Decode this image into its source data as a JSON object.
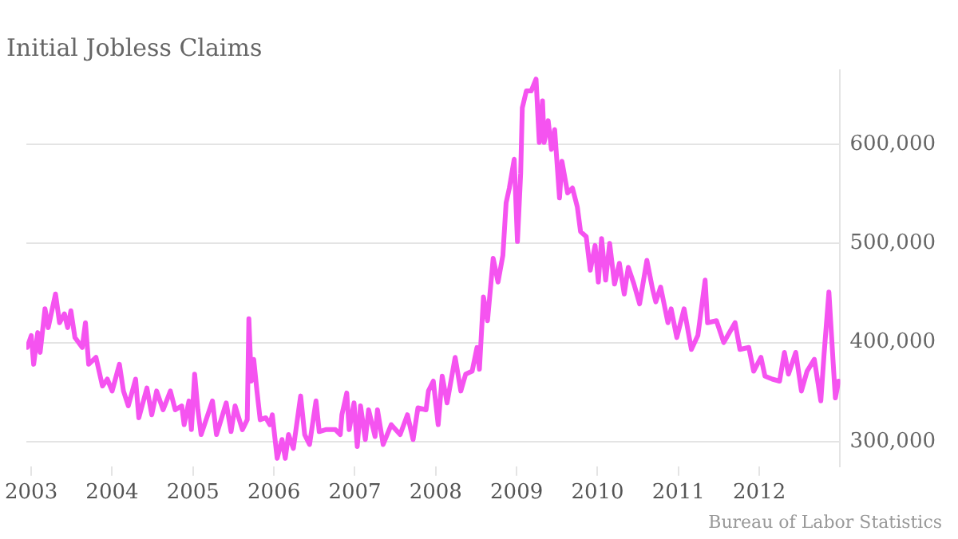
{
  "chart_data": {
    "type": "line",
    "title": "Initial Jobless Claims",
    "annotations": [
      "Bureau of Labor Statistics"
    ],
    "x": [
      2002.95,
      2003.0,
      2003.03,
      2003.08,
      2003.11,
      2003.17,
      2003.21,
      2003.3,
      2003.35,
      2003.41,
      2003.45,
      2003.49,
      2003.54,
      2003.63,
      2003.67,
      2003.71,
      2003.8,
      2003.88,
      2003.94,
      2004.0,
      2004.09,
      2004.14,
      2004.2,
      2004.29,
      2004.33,
      2004.43,
      2004.49,
      2004.55,
      2004.63,
      2004.72,
      2004.78,
      2004.86,
      2004.89,
      2004.95,
      2004.98,
      2005.02,
      2005.06,
      2005.1,
      2005.24,
      2005.29,
      2005.41,
      2005.47,
      2005.52,
      2005.61,
      2005.67,
      2005.69,
      2005.72,
      2005.75,
      2005.79,
      2005.83,
      2005.9,
      2005.95,
      2005.98,
      2006.04,
      2006.1,
      2006.14,
      2006.18,
      2006.24,
      2006.33,
      2006.38,
      2006.44,
      2006.52,
      2006.56,
      2006.64,
      2006.76,
      2006.82,
      2006.84,
      2006.9,
      2006.93,
      2006.99,
      2007.03,
      2007.07,
      2007.13,
      2007.17,
      2007.25,
      2007.28,
      2007.35,
      2007.45,
      2007.56,
      2007.65,
      2007.72,
      2007.78,
      2007.88,
      2007.91,
      2007.97,
      2008.03,
      2008.08,
      2008.14,
      2008.24,
      2008.31,
      2008.37,
      2008.45,
      2008.51,
      2008.54,
      2008.59,
      2008.64,
      2008.71,
      2008.77,
      2008.83,
      2008.87,
      2008.91,
      2008.97,
      2009.01,
      2009.05,
      2009.07,
      2009.12,
      2009.18,
      2009.24,
      2009.28,
      2009.32,
      2009.34,
      2009.39,
      2009.43,
      2009.47,
      2009.53,
      2009.56,
      2009.63,
      2009.69,
      2009.75,
      2009.79,
      2009.86,
      2009.91,
      2009.97,
      2010.01,
      2010.05,
      2010.1,
      2010.15,
      2010.21,
      2010.27,
      2010.33,
      2010.38,
      2010.45,
      2010.52,
      2010.61,
      2010.68,
      2010.72,
      2010.78,
      2010.87,
      2010.91,
      2010.98,
      2011.07,
      2011.16,
      2011.24,
      2011.33,
      2011.36,
      2011.47,
      2011.56,
      2011.7,
      2011.76,
      2011.87,
      2011.93,
      2012.02,
      2012.07,
      2012.16,
      2012.25,
      2012.31,
      2012.36,
      2012.45,
      2012.52,
      2012.59,
      2012.68,
      2012.76,
      2012.8,
      2012.86,
      2012.91,
      2012.94,
      2012.98
    ],
    "series": [
      {
        "color": "#f553f0",
        "values": [
          395000,
          407000,
          378000,
          410000,
          390000,
          434000,
          415000,
          449000,
          420000,
          429000,
          415000,
          432000,
          405000,
          395000,
          420000,
          378000,
          385000,
          356000,
          363000,
          351000,
          378000,
          351000,
          336000,
          363000,
          324000,
          354000,
          327000,
          351000,
          332000,
          351000,
          332000,
          336000,
          317000,
          341000,
          312000,
          368000,
          332000,
          307000,
          341000,
          307000,
          339000,
          310000,
          336000,
          312000,
          322000,
          424000,
          361000,
          383000,
          351000,
          322000,
          324000,
          317000,
          327000,
          283000,
          302000,
          283000,
          307000,
          293000,
          346000,
          307000,
          297000,
          341000,
          310000,
          312000,
          312000,
          307000,
          327000,
          349000,
          312000,
          339000,
          295000,
          336000,
          302000,
          332000,
          305000,
          332000,
          297000,
          317000,
          307000,
          327000,
          302000,
          334000,
          332000,
          351000,
          361000,
          317000,
          366000,
          339000,
          385000,
          351000,
          368000,
          371000,
          395000,
          373000,
          446000,
          422000,
          485000,
          461000,
          488000,
          541000,
          556000,
          585000,
          502000,
          571000,
          637000,
          654000,
          654000,
          666000,
          602000,
          644000,
          602000,
          624000,
          595000,
          615000,
          546000,
          583000,
          551000,
          556000,
          537000,
          512000,
          507000,
          473000,
          498000,
          461000,
          505000,
          463000,
          500000,
          459000,
          480000,
          449000,
          476000,
          459000,
          439000,
          483000,
          454000,
          441000,
          456000,
          420000,
          434000,
          405000,
          434000,
          393000,
          407000,
          463000,
          420000,
          422000,
          400000,
          420000,
          393000,
          395000,
          371000,
          385000,
          366000,
          363000,
          361000,
          390000,
          368000,
          390000,
          351000,
          371000,
          383000,
          341000,
          388000,
          451000,
          383000,
          344000,
          361000
        ]
      }
    ],
    "xlim": [
      2002.94,
      2013.0
    ],
    "xticks": [
      2003,
      2004,
      2005,
      2006,
      2007,
      2008,
      2009,
      2010,
      2011,
      2012
    ],
    "ylim": [
      275000,
      675000
    ],
    "yticks": [
      {
        "value": 300000,
        "label": "300,000"
      },
      {
        "value": 400000,
        "label": "400,000"
      },
      {
        "value": 500000,
        "label": "500,000"
      },
      {
        "value": 600000,
        "label": "600,000"
      }
    ],
    "grid": "y",
    "line_style": "solid",
    "marker": "none"
  }
}
